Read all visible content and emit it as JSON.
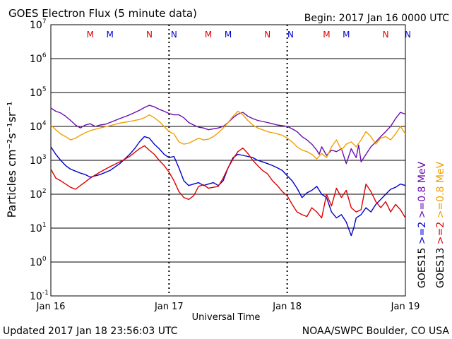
{
  "chart_data": {
    "type": "line",
    "title": "GOES Electron Flux (5 minute data)",
    "begin_label": "Begin: 2017 Jan 16 0000 UTC",
    "xlabel": "Universal Time",
    "ylabel": "Particles cm⁻²s⁻¹sr⁻¹",
    "y_scale": "log",
    "ylim": [
      0.1,
      10000000
    ],
    "xlim": [
      0,
      72
    ],
    "x_unit": "hours since 2017 Jan 16 0000 UTC",
    "x_ticks": [
      {
        "x": 0,
        "label": "Jan 16"
      },
      {
        "x": 24,
        "label": "Jan 17"
      },
      {
        "x": 48,
        "label": "Jan 18"
      },
      {
        "x": 72,
        "label": "Jan 19"
      }
    ],
    "y_ticks": [
      {
        "exp": 7,
        "base": "10",
        "sup": "7"
      },
      {
        "exp": 6,
        "base": "10",
        "sup": "6"
      },
      {
        "exp": 5,
        "base": "10",
        "sup": "5"
      },
      {
        "exp": 4,
        "base": "10",
        "sup": "4"
      },
      {
        "exp": 3,
        "base": "10",
        "sup": "3"
      },
      {
        "exp": 2,
        "base": "10",
        "sup": "2"
      },
      {
        "exp": 1,
        "base": "10",
        "sup": "1"
      },
      {
        "exp": 0,
        "base": "10",
        "sup": "0"
      },
      {
        "exp": -1,
        "base": "10",
        "sup": "-1"
      }
    ],
    "threshold": 1000,
    "grid": "horizontal decades",
    "mn_markers": [
      {
        "x": 8,
        "label": "M",
        "color": "#dd0000"
      },
      {
        "x": 12,
        "label": "M",
        "color": "#0000cc"
      },
      {
        "x": 20,
        "label": "N",
        "color": "#dd0000"
      },
      {
        "x": 25,
        "label": "N",
        "color": "#0000cc"
      },
      {
        "x": 32,
        "label": "M",
        "color": "#dd0000"
      },
      {
        "x": 36,
        "label": "M",
        "color": "#0000cc"
      },
      {
        "x": 44,
        "label": "N",
        "color": "#dd0000"
      },
      {
        "x": 48.7,
        "label": "N",
        "color": "#0000cc"
      },
      {
        "x": 56,
        "label": "M",
        "color": "#dd0000"
      },
      {
        "x": 60,
        "label": "M",
        "color": "#0000cc"
      },
      {
        "x": 68,
        "label": "N",
        "color": "#dd0000"
      },
      {
        "x": 72.5,
        "label": "N",
        "color": "#0000cc"
      }
    ],
    "legend": [
      {
        "label": "GOES15",
        "color": "#000000",
        "placement": "right"
      },
      {
        "label": ">=2",
        "color": "#0000cc",
        "placement": "right"
      },
      {
        "label": ">=0.8 MeV",
        "color": "#6a0dad",
        "placement": "right"
      },
      {
        "label": "GOES13",
        "color": "#000000",
        "placement": "right"
      },
      {
        "label": ">=2",
        "color": "#dd0000",
        "placement": "right"
      },
      {
        "label": ">=0.8 MeV",
        "color": "#f0a000",
        "placement": "right"
      }
    ],
    "series": [
      {
        "color": "#6a0dad",
        "points": [
          [
            0,
            35000
          ],
          [
            1,
            28000
          ],
          [
            2,
            25000
          ],
          [
            3,
            20000
          ],
          [
            4,
            15000
          ],
          [
            5,
            11000
          ],
          [
            6,
            9000
          ],
          [
            7,
            11000
          ],
          [
            8,
            12000
          ],
          [
            9,
            10000
          ],
          [
            10,
            11000
          ],
          [
            11,
            11500
          ],
          [
            12,
            13000
          ],
          [
            14,
            17000
          ],
          [
            16,
            22000
          ],
          [
            18,
            30000
          ],
          [
            19,
            36000
          ],
          [
            20,
            42000
          ],
          [
            21,
            38000
          ],
          [
            22,
            32000
          ],
          [
            23,
            28000
          ],
          [
            24,
            24000
          ],
          [
            25,
            22000
          ],
          [
            26,
            22000
          ],
          [
            27,
            18000
          ],
          [
            28,
            13000
          ],
          [
            29,
            11000
          ],
          [
            30,
            9500
          ],
          [
            31,
            9000
          ],
          [
            32,
            8000
          ],
          [
            33,
            8500
          ],
          [
            34,
            9000
          ],
          [
            35,
            10000
          ],
          [
            36,
            13000
          ],
          [
            37,
            18000
          ],
          [
            38,
            23000
          ],
          [
            39,
            26000
          ],
          [
            40,
            20000
          ],
          [
            41,
            17000
          ],
          [
            42,
            15000
          ],
          [
            43,
            14000
          ],
          [
            44,
            13000
          ],
          [
            45,
            12000
          ],
          [
            46,
            11000
          ],
          [
            47,
            10500
          ],
          [
            48,
            10000
          ],
          [
            49,
            8500
          ],
          [
            50,
            7000
          ],
          [
            51,
            5000
          ],
          [
            52,
            4000
          ],
          [
            53,
            3000
          ],
          [
            54,
            2000
          ],
          [
            54.5,
            1500
          ],
          [
            55,
            2500
          ],
          [
            56,
            1400
          ],
          [
            57,
            2000
          ],
          [
            58,
            1800
          ],
          [
            59,
            2200
          ],
          [
            60,
            800
          ],
          [
            61,
            2200
          ],
          [
            62,
            1200
          ],
          [
            62.5,
            2800
          ],
          [
            63,
            900
          ],
          [
            64,
            1500
          ],
          [
            65,
            2500
          ],
          [
            66,
            3500
          ],
          [
            67,
            5000
          ],
          [
            68,
            7000
          ],
          [
            69,
            10000
          ],
          [
            70,
            17000
          ],
          [
            71,
            26000
          ],
          [
            72,
            23000
          ]
        ]
      },
      {
        "color": "#f0a000",
        "points": [
          [
            0,
            11000
          ],
          [
            1,
            8000
          ],
          [
            2,
            6000
          ],
          [
            3,
            5000
          ],
          [
            4,
            4000
          ],
          [
            5,
            4500
          ],
          [
            6,
            5500
          ],
          [
            7,
            6500
          ],
          [
            8,
            7500
          ],
          [
            10,
            9000
          ],
          [
            12,
            10500
          ],
          [
            14,
            12500
          ],
          [
            16,
            14000
          ],
          [
            18,
            16000
          ],
          [
            19,
            18000
          ],
          [
            20,
            22000
          ],
          [
            21,
            18000
          ],
          [
            22,
            14000
          ],
          [
            23,
            10000
          ],
          [
            24,
            7000
          ],
          [
            25,
            6000
          ],
          [
            26,
            3500
          ],
          [
            27,
            3000
          ],
          [
            28,
            3200
          ],
          [
            29,
            3800
          ],
          [
            30,
            4500
          ],
          [
            31,
            4000
          ],
          [
            32,
            4200
          ],
          [
            33,
            5000
          ],
          [
            34,
            6500
          ],
          [
            35,
            9000
          ],
          [
            36,
            13000
          ],
          [
            37,
            20000
          ],
          [
            38,
            28000
          ],
          [
            39,
            22000
          ],
          [
            40,
            15000
          ],
          [
            41,
            11000
          ],
          [
            42,
            9000
          ],
          [
            43,
            8000
          ],
          [
            44,
            7000
          ],
          [
            45,
            6500
          ],
          [
            46,
            6000
          ],
          [
            47,
            5500
          ],
          [
            48,
            4500
          ],
          [
            49,
            3500
          ],
          [
            50,
            2500
          ],
          [
            51,
            2000
          ],
          [
            52,
            1800
          ],
          [
            53,
            1500
          ],
          [
            54,
            1100
          ],
          [
            55,
            1600
          ],
          [
            56,
            1200
          ],
          [
            57,
            2500
          ],
          [
            58,
            4000
          ],
          [
            59,
            2000
          ],
          [
            60,
            3000
          ],
          [
            61,
            3500
          ],
          [
            62,
            2500
          ],
          [
            63,
            4000
          ],
          [
            64,
            7000
          ],
          [
            65,
            5000
          ],
          [
            66,
            3000
          ],
          [
            67,
            4500
          ],
          [
            68,
            5000
          ],
          [
            69,
            4000
          ],
          [
            70,
            6000
          ],
          [
            71,
            10000
          ],
          [
            72,
            6000
          ]
        ]
      },
      {
        "color": "#0000cc",
        "points": [
          [
            0,
            2500
          ],
          [
            1,
            1500
          ],
          [
            2,
            1000
          ],
          [
            3,
            700
          ],
          [
            4,
            550
          ],
          [
            5,
            480
          ],
          [
            6,
            420
          ],
          [
            7,
            380
          ],
          [
            8,
            320
          ],
          [
            10,
            380
          ],
          [
            12,
            500
          ],
          [
            14,
            800
          ],
          [
            16,
            1500
          ],
          [
            17,
            2200
          ],
          [
            18,
            3500
          ],
          [
            19,
            5000
          ],
          [
            20,
            4500
          ],
          [
            21,
            3000
          ],
          [
            22,
            2200
          ],
          [
            23,
            1500
          ],
          [
            24,
            1200
          ],
          [
            25,
            1300
          ],
          [
            26,
            600
          ],
          [
            27,
            250
          ],
          [
            28,
            180
          ],
          [
            29,
            200
          ],
          [
            30,
            220
          ],
          [
            31,
            180
          ],
          [
            32,
            200
          ],
          [
            33,
            220
          ],
          [
            34,
            180
          ],
          [
            35,
            250
          ],
          [
            36,
            600
          ],
          [
            37,
            1200
          ],
          [
            38,
            1500
          ],
          [
            39,
            1400
          ],
          [
            40,
            1300
          ],
          [
            41,
            1200
          ],
          [
            42,
            1000
          ],
          [
            43,
            900
          ],
          [
            44,
            800
          ],
          [
            45,
            700
          ],
          [
            46,
            600
          ],
          [
            47,
            500
          ],
          [
            48,
            350
          ],
          [
            49,
            250
          ],
          [
            50,
            150
          ],
          [
            51,
            80
          ],
          [
            52,
            110
          ],
          [
            53,
            130
          ],
          [
            54,
            170
          ],
          [
            55,
            100
          ],
          [
            56,
            80
          ],
          [
            57,
            30
          ],
          [
            58,
            20
          ],
          [
            59,
            25
          ],
          [
            60,
            15
          ],
          [
            61,
            6
          ],
          [
            61.5,
            10
          ],
          [
            62,
            20
          ],
          [
            63,
            25
          ],
          [
            64,
            40
          ],
          [
            65,
            30
          ],
          [
            66,
            50
          ],
          [
            67,
            70
          ],
          [
            68,
            100
          ],
          [
            69,
            140
          ],
          [
            70,
            160
          ],
          [
            71,
            200
          ],
          [
            72,
            180
          ]
        ]
      },
      {
        "color": "#dd0000",
        "points": [
          [
            0,
            550
          ],
          [
            1,
            300
          ],
          [
            2,
            250
          ],
          [
            3,
            200
          ],
          [
            4,
            160
          ],
          [
            5,
            140
          ],
          [
            6,
            180
          ],
          [
            7,
            230
          ],
          [
            8,
            300
          ],
          [
            10,
            450
          ],
          [
            12,
            650
          ],
          [
            14,
            900
          ],
          [
            16,
            1300
          ],
          [
            17,
            1700
          ],
          [
            18,
            2200
          ],
          [
            19,
            2700
          ],
          [
            20,
            2000
          ],
          [
            21,
            1500
          ],
          [
            22,
            1000
          ],
          [
            23,
            700
          ],
          [
            24,
            450
          ],
          [
            25,
            250
          ],
          [
            26,
            120
          ],
          [
            27,
            80
          ],
          [
            28,
            70
          ],
          [
            29,
            90
          ],
          [
            30,
            170
          ],
          [
            31,
            190
          ],
          [
            32,
            150
          ],
          [
            33,
            160
          ],
          [
            34,
            170
          ],
          [
            35,
            300
          ],
          [
            36,
            600
          ],
          [
            37,
            1100
          ],
          [
            38,
            1800
          ],
          [
            39,
            2300
          ],
          [
            40,
            1600
          ],
          [
            41,
            1000
          ],
          [
            42,
            700
          ],
          [
            43,
            500
          ],
          [
            44,
            400
          ],
          [
            45,
            250
          ],
          [
            46,
            180
          ],
          [
            47,
            120
          ],
          [
            48,
            90
          ],
          [
            49,
            50
          ],
          [
            50,
            30
          ],
          [
            51,
            25
          ],
          [
            52,
            22
          ],
          [
            53,
            40
          ],
          [
            54,
            30
          ],
          [
            55,
            20
          ],
          [
            56,
            100
          ],
          [
            57,
            45
          ],
          [
            58,
            150
          ],
          [
            59,
            80
          ],
          [
            60,
            130
          ],
          [
            61,
            40
          ],
          [
            62,
            30
          ],
          [
            63,
            35
          ],
          [
            64,
            200
          ],
          [
            65,
            120
          ],
          [
            66,
            60
          ],
          [
            67,
            40
          ],
          [
            68,
            60
          ],
          [
            69,
            30
          ],
          [
            70,
            50
          ],
          [
            71,
            35
          ],
          [
            72,
            20
          ]
        ]
      }
    ]
  },
  "footer": {
    "updated": "Updated 2017 Jan 18 23:56:03 UTC",
    "credit": "NOAA/SWPC Boulder, CO USA"
  }
}
